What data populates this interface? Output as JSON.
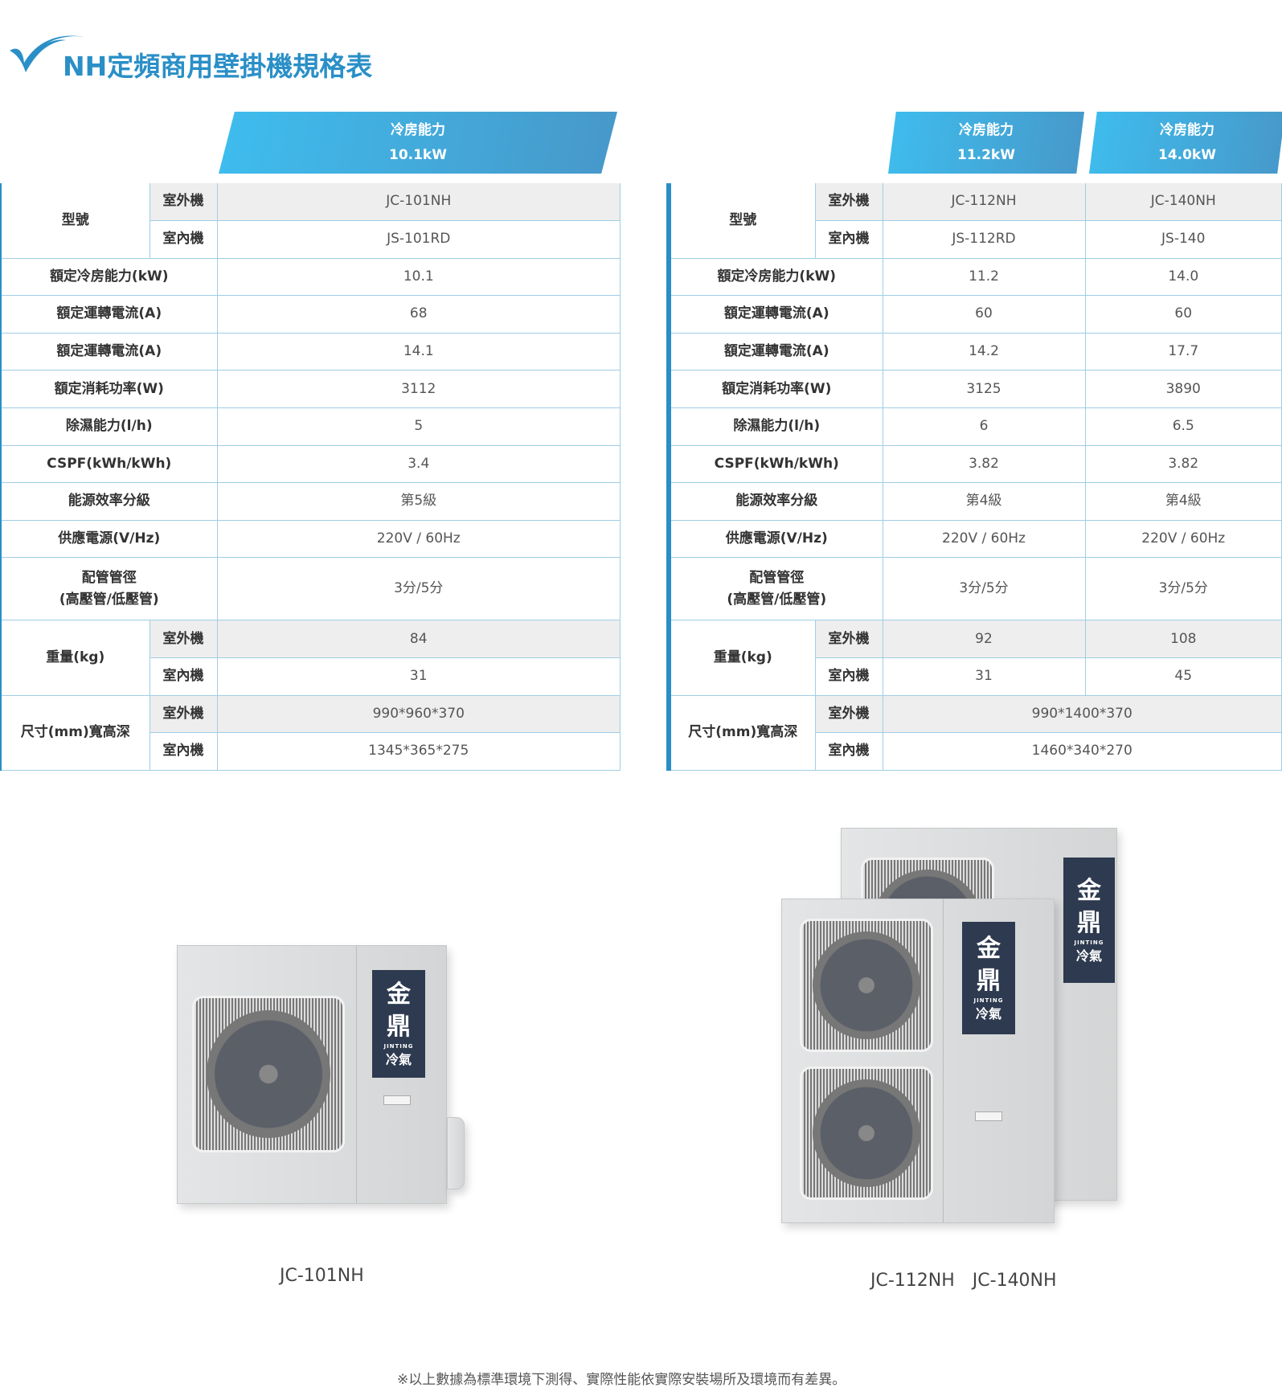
{
  "title": "NH定頻商用壁掛機規格表",
  "colors": {
    "accent": "#2a8fc7",
    "header_gradient_start": "#3ebdee",
    "header_gradient_end": "#4798c9",
    "grid": "#9fcde6",
    "outdoor_row_bg": "#eeeeee"
  },
  "left": {
    "headers": [
      {
        "line1": "冷房能力",
        "line2": "10.1kW"
      }
    ],
    "rows": [
      {
        "label": "型號",
        "sub": "室外機",
        "values": [
          "JC-101NH"
        ],
        "gray": true,
        "span": 2
      },
      {
        "sub": "室內機",
        "values": [
          "JS-101RD"
        ]
      },
      {
        "label": "額定冷房能力(kW)",
        "values": [
          "10.1"
        ]
      },
      {
        "label": "額定運轉電流(A)",
        "values": [
          "68"
        ]
      },
      {
        "label": "額定運轉電流(A)",
        "values": [
          "14.1"
        ]
      },
      {
        "label": "額定消耗功率(W)",
        "values": [
          "3112"
        ]
      },
      {
        "label": "除濕能力(l/h)",
        "values": [
          "5"
        ]
      },
      {
        "label": "CSPF(kWh/kWh)",
        "values": [
          "3.4"
        ]
      },
      {
        "label": "能源效率分級",
        "values": [
          "第5級"
        ]
      },
      {
        "label": "供應電源(V/Hz)",
        "values": [
          "220V / 60Hz"
        ]
      },
      {
        "label": "配管管徑\n(高壓管/低壓管)",
        "values": [
          "3分/5分"
        ],
        "tall": true
      },
      {
        "label": "重量(kg)",
        "sub": "室外機",
        "values": [
          "84"
        ],
        "gray": true,
        "span": 2
      },
      {
        "sub": "室內機",
        "values": [
          "31"
        ]
      },
      {
        "label": "尺寸(mm)寬高深",
        "sub": "室外機",
        "values": [
          "990*960*370"
        ],
        "gray": true,
        "span": 2
      },
      {
        "sub": "室內機",
        "values": [
          "1345*365*275"
        ]
      }
    ]
  },
  "right": {
    "headers": [
      {
        "line1": "冷房能力",
        "line2": "11.2kW"
      },
      {
        "line1": "冷房能力",
        "line2": "14.0kW"
      }
    ],
    "rows": [
      {
        "label": "型號",
        "sub": "室外機",
        "values": [
          "JC-112NH",
          "JC-140NH"
        ],
        "gray": true,
        "span": 2
      },
      {
        "sub": "室內機",
        "values": [
          "JS-112RD",
          "JS-140"
        ]
      },
      {
        "label": "額定冷房能力(kW)",
        "values": [
          "11.2",
          "14.0"
        ]
      },
      {
        "label": "額定運轉電流(A)",
        "values": [
          "60",
          "60"
        ]
      },
      {
        "label": "額定運轉電流(A)",
        "values": [
          "14.2",
          "17.7"
        ]
      },
      {
        "label": "額定消耗功率(W)",
        "values": [
          "3125",
          "3890"
        ]
      },
      {
        "label": "除濕能力(l/h)",
        "values": [
          "6",
          "6.5"
        ]
      },
      {
        "label": "CSPF(kWh/kWh)",
        "values": [
          "3.82",
          "3.82"
        ]
      },
      {
        "label": "能源效率分級",
        "values": [
          "第4級",
          "第4級"
        ]
      },
      {
        "label": "供應電源(V/Hz)",
        "values": [
          "220V / 60Hz",
          "220V / 60Hz"
        ]
      },
      {
        "label": "配管管徑\n(高壓管/低壓管)",
        "values": [
          "3分/5分",
          "3分/5分"
        ],
        "tall": true
      },
      {
        "label": "重量(kg)",
        "sub": "室外機",
        "values": [
          "92",
          "108"
        ],
        "gray": true,
        "span": 2
      },
      {
        "sub": "室內機",
        "values": [
          "31",
          "45"
        ]
      },
      {
        "label": "尺寸(mm)寬高深",
        "sub": "室外機",
        "values": [
          "990*1400*370"
        ],
        "gray": true,
        "span": 2,
        "merged": true
      },
      {
        "sub": "室內機",
        "values": [
          "1460*340*270"
        ],
        "merged": true
      }
    ]
  },
  "products": {
    "left_caption": "JC-101NH",
    "right_caption": "JC-112NH　JC-140NH",
    "logo": {
      "big1": "金",
      "big2": "鼎",
      "small": "JINTING",
      "bottom": "冷氣"
    }
  },
  "footnote": "※以上數據為標準環境下測得、實際性能依實際安裝場所及環境而有差異。"
}
